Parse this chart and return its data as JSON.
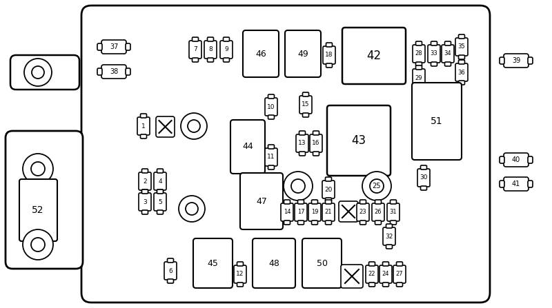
{
  "bg_color": "#ffffff",
  "line_color": "#000000",
  "fig_w": 8.0,
  "fig_h": 4.47,
  "dpi": 100
}
